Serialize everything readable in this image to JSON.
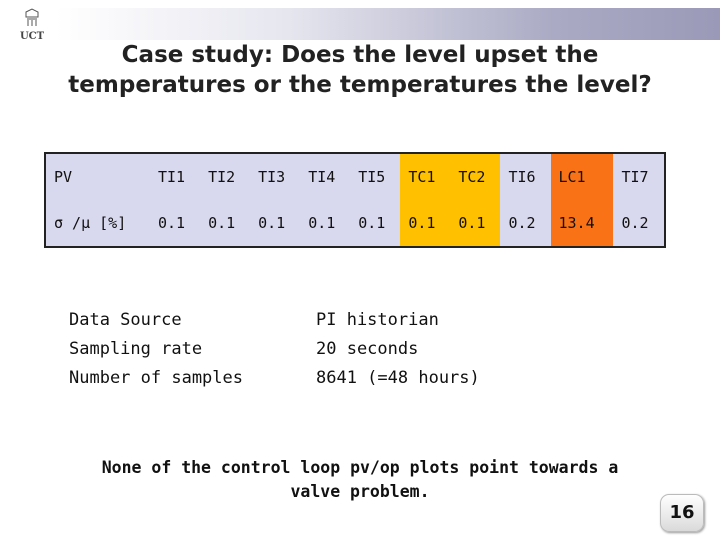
{
  "logo": {
    "text": "UCT"
  },
  "title": {
    "line1": "Case study: Does the level upset the",
    "line2": "temperatures or the temperatures the level?"
  },
  "table": {
    "header": [
      "PV",
      "TI1",
      "TI2",
      "TI3",
      "TI4",
      "TI5",
      "TC1",
      "TC2",
      "TI6",
      "LC1",
      "TI7"
    ],
    "row": [
      "σ /μ [%]",
      "0.1",
      "0.1",
      "0.1",
      "0.1",
      "0.1",
      "0.1",
      "0.1",
      "0.2",
      "13.4",
      "0.2"
    ]
  },
  "info": {
    "labels": [
      "Data Source",
      "Sampling rate",
      "Number of samples"
    ],
    "values": [
      "PI historian",
      "20 seconds",
      "8641 (=48 hours)"
    ]
  },
  "note": {
    "line1": "None of the control loop pv/op plots point towards a",
    "line2": "valve problem."
  },
  "page_number": "16",
  "colors": {
    "table_bg": "#d8d8ee",
    "tc_highlight": "#ffc000",
    "lc_highlight": "#f97316"
  }
}
